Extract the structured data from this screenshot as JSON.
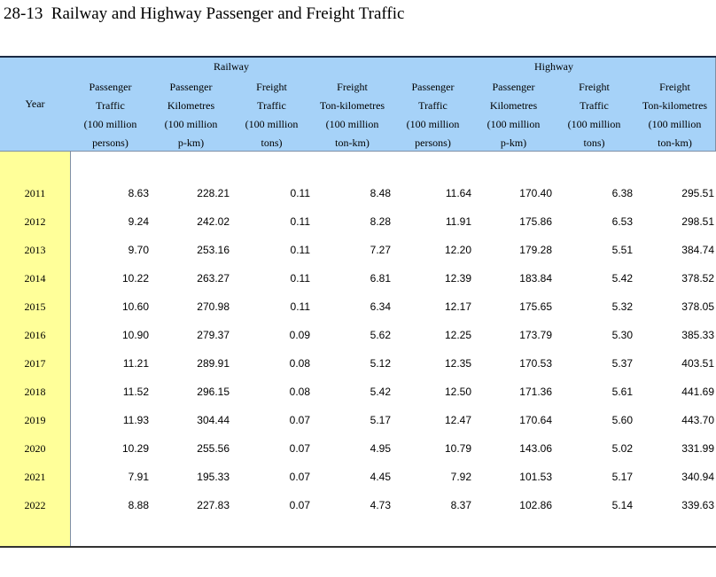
{
  "header": {
    "title": "28-13  Railway and Highway Passenger and Freight Traffic"
  },
  "table": {
    "year_header": "Year",
    "groups": [
      "Railway",
      "Highway"
    ],
    "columns": [
      [
        "Passenger",
        "Traffic",
        "(100 million",
        "persons)"
      ],
      [
        "Passenger",
        "Kilometres",
        "(100 million",
        "p-km)"
      ],
      [
        "Freight",
        "Traffic",
        "(100 million",
        "tons)"
      ],
      [
        "Freight",
        "Ton-kilometres",
        "(100 million",
        "ton-km)"
      ],
      [
        "Passenger",
        "Traffic",
        "(100 million",
        "persons)"
      ],
      [
        "Passenger",
        "Kilometres",
        "(100 million",
        "p-km)"
      ],
      [
        "Freight",
        "Traffic",
        "(100 million",
        "tons)"
      ],
      [
        "Freight",
        "Ton-kilometres",
        "(100 million",
        "ton-km)"
      ]
    ],
    "rows": [
      [
        "2011",
        "8.63",
        "228.21",
        "0.11",
        "8.48",
        "11.64",
        "170.40",
        "6.38",
        "295.51"
      ],
      [
        "2012",
        "9.24",
        "242.02",
        "0.11",
        "8.28",
        "11.91",
        "175.86",
        "6.53",
        "298.51"
      ],
      [
        "2013",
        "9.70",
        "253.16",
        "0.11",
        "7.27",
        "12.20",
        "179.28",
        "5.51",
        "384.74"
      ],
      [
        "2014",
        "10.22",
        "263.27",
        "0.11",
        "6.81",
        "12.39",
        "183.84",
        "5.42",
        "378.52"
      ],
      [
        "2015",
        "10.60",
        "270.98",
        "0.11",
        "6.34",
        "12.17",
        "175.65",
        "5.32",
        "378.05"
      ],
      [
        "2016",
        "10.90",
        "279.37",
        "0.09",
        "5.62",
        "12.25",
        "173.79",
        "5.30",
        "385.33"
      ],
      [
        "2017",
        "11.21",
        "289.91",
        "0.08",
        "5.12",
        "12.35",
        "170.53",
        "5.37",
        "403.51"
      ],
      [
        "2018",
        "11.52",
        "296.15",
        "0.08",
        "5.42",
        "12.50",
        "171.36",
        "5.61",
        "441.69"
      ],
      [
        "2019",
        "11.93",
        "304.44",
        "0.07",
        "5.17",
        "12.47",
        "170.64",
        "5.60",
        "443.70"
      ],
      [
        "2020",
        "10.29",
        "255.56",
        "0.07",
        "4.95",
        "10.79",
        "143.06",
        "5.02",
        "331.99"
      ],
      [
        "2021",
        "7.91",
        "195.33",
        "0.07",
        "4.45",
        "7.92",
        "101.53",
        "5.17",
        "340.94"
      ],
      [
        "2022",
        "8.88",
        "227.83",
        "0.07",
        "4.73",
        "8.37",
        "102.86",
        "5.14",
        "339.63"
      ]
    ]
  }
}
